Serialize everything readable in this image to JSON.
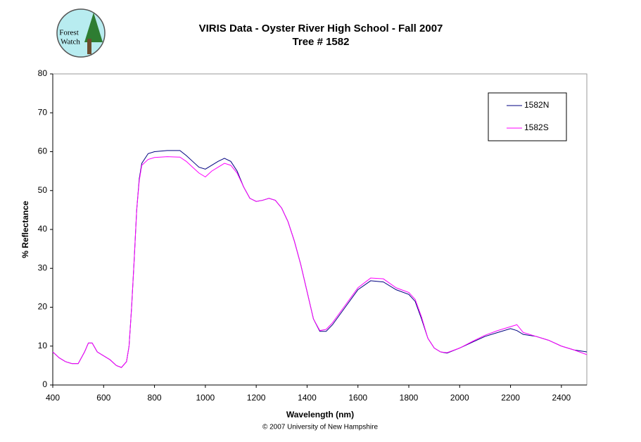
{
  "logo": {
    "line1": "Forest",
    "line2": "Watch"
  },
  "chart_data": {
    "type": "line",
    "title": "VIRIS Data - Oyster River High School - Fall 2007",
    "subtitle": "Tree # 1582",
    "x_label": "Wavelength (nm)",
    "y_label": "% Reflectance",
    "footer": "© 2007 University of New Hampshire",
    "x": [
      400,
      425,
      450,
      475,
      500,
      525,
      540,
      555,
      575,
      600,
      625,
      650,
      670,
      690,
      700,
      710,
      720,
      730,
      740,
      750,
      775,
      800,
      850,
      900,
      925,
      950,
      975,
      1000,
      1025,
      1050,
      1075,
      1100,
      1125,
      1150,
      1175,
      1200,
      1225,
      1250,
      1275,
      1300,
      1325,
      1350,
      1375,
      1400,
      1425,
      1450,
      1475,
      1500,
      1550,
      1600,
      1650,
      1700,
      1750,
      1800,
      1825,
      1850,
      1875,
      1900,
      1925,
      1950,
      2000,
      2050,
      2100,
      2150,
      2200,
      2225,
      2250,
      2300,
      2350,
      2400,
      2450,
      2500
    ],
    "series": [
      {
        "name": "1582N",
        "color": "#000080",
        "values": [
          8.5,
          7,
          6,
          5.5,
          5.5,
          8.5,
          10.8,
          10.8,
          8.5,
          7.5,
          6.5,
          5,
          4.5,
          6,
          10,
          20,
          32,
          45,
          53,
          57,
          59.5,
          60,
          60.3,
          60.3,
          59,
          57.5,
          56,
          55.5,
          56.5,
          57.5,
          58.3,
          57.5,
          55,
          51,
          48,
          47.2,
          47.5,
          48,
          47.5,
          45.5,
          42,
          37,
          31,
          24,
          17,
          13.8,
          13.8,
          15.5,
          20,
          24.5,
          26.8,
          26.5,
          24.5,
          23.3,
          21.5,
          17,
          12,
          9.5,
          8.5,
          8.2,
          9.5,
          11,
          12.5,
          13.5,
          14.5,
          14,
          13,
          12.5,
          11.5,
          10,
          9,
          8.5
        ]
      },
      {
        "name": "1582S",
        "color": "#ff00ff",
        "values": [
          8.5,
          7,
          6,
          5.5,
          5.5,
          8.5,
          10.8,
          10.8,
          8.5,
          7.5,
          6.5,
          5,
          4.5,
          6,
          10,
          20,
          32,
          45,
          52.5,
          56.5,
          58,
          58.5,
          58.7,
          58.6,
          57.5,
          56,
          54.5,
          53.5,
          55,
          56,
          57,
          56.5,
          54.5,
          51,
          48,
          47.2,
          47.5,
          48,
          47.5,
          45.5,
          42,
          37,
          31,
          24,
          17,
          14,
          14.3,
          16,
          20.5,
          25,
          27.5,
          27.3,
          25,
          23.8,
          22,
          17.5,
          12,
          9.5,
          8.5,
          8.3,
          9.5,
          11.2,
          12.8,
          14,
          15,
          15.5,
          13.5,
          12.5,
          11.5,
          10,
          9,
          7.8
        ]
      }
    ],
    "xlim": [
      400,
      2500
    ],
    "xticks": [
      400,
      600,
      800,
      1000,
      1200,
      1400,
      1600,
      1800,
      2000,
      2200,
      2400
    ],
    "ylim": [
      0,
      80
    ],
    "yticks": [
      0,
      10,
      20,
      30,
      40,
      50,
      60,
      70,
      80
    ],
    "legend": "upper-right"
  }
}
